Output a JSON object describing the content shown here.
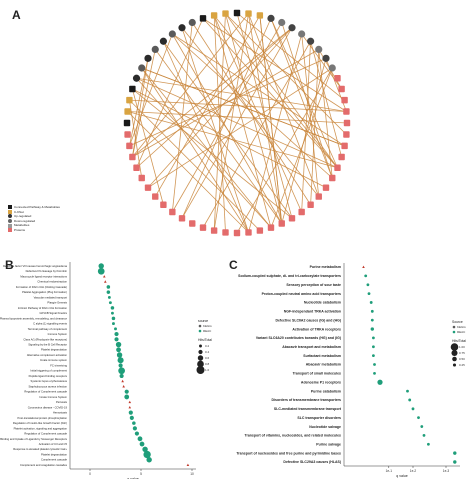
{
  "panel_a": {
    "label": "A",
    "legend": [
      {
        "text": "Connected Pathway & Metabolites",
        "color": "#1a1a1a",
        "shape": "square"
      },
      {
        "text": "C-KNet",
        "color": "#d9a441",
        "shape": "square"
      },
      {
        "text": "Up-regulated",
        "color": "#333333",
        "shape": "circle"
      },
      {
        "text": "Down-regulated",
        "color": "#666666",
        "shape": "circle"
      },
      {
        "text": "Metabolites",
        "color": "#999999",
        "shape": "square"
      },
      {
        "text": "Proteins",
        "color": "#e36b6b",
        "shape": "square"
      }
    ]
  },
  "panel_b": {
    "label": "B",
    "chart_data": {
      "type": "scatter",
      "xlabel": "q value",
      "xlim": [
        0,
        10
      ],
      "xticks": [
        0,
        5,
        10
      ],
      "legend_source_title": "source",
      "sources": [
        {
          "name": "KEGG",
          "color": "#5a5a5a"
        },
        {
          "name": "REAC",
          "color": "#1f9e7a"
        }
      ],
      "legend_size_title": "Hits/Total",
      "size_levels": [
        "0.2",
        "0.4",
        "0.6",
        "0.8",
        "1.0"
      ],
      "categories": [
        "Defective factor VIII causes hemorrhagic angioedema",
        "Defective F9 cleavage by thrombin",
        "Macrocycle ligand receptor interactions",
        "Chemical endoextraction",
        "Formation of Fibrin Clot (Clotting Cascade)",
        "Platelet Aggregation (Plug Formation)",
        "Vascular mediated transport",
        "Plasgin-Genesis",
        "Intrinsic Pathway of Fibrin Clot Formation",
        "GP1CB Signal Kinetics",
        "Plasma lipoprotein assembly, remodeling, and clearance",
        "C alpha (1) signalling events",
        "Terminal pathway of complement",
        "Immune System",
        "Class A/1 (Rhodopsin-like receptors)",
        "Signaling by the B Cell Receptor",
        "Platelet degranulation",
        "Alternative complement activation",
        "Innate immune system",
        "FC trimerizing",
        "Initial triggering of complement",
        "Peptide ligand binding receptors",
        "Systemic lupus erythematosus",
        "Staphylococcus aureus infection",
        "Regulation of Complement cascade",
        "Innate Immune System",
        "Pertussis",
        "Coronavirus disease - COVID-19",
        "Hemostasis",
        "Post-translational protein phosphorylation",
        "Regulation of Insulin-like Growth Factor (IGF)",
        "Platelet activation, signaling and aggregation",
        "Regulation of Complement cascade",
        "Binding and Uptake of Ligands by Scavenger Receptors",
        "Activation of C3 and C5",
        "Response to elevated platelet cytosolic Ca2+",
        "Platelet degranulation",
        "Complement cascade",
        "Complement and coagulation cascades"
      ],
      "points": [
        {
          "q": 1.1,
          "size": 0.6,
          "source": "REAC"
        },
        {
          "q": 1.1,
          "size": 0.8,
          "source": "REAC"
        },
        {
          "q": 1.4,
          "size": 0.2,
          "source": "KEGG"
        },
        {
          "q": 1.5,
          "size": 0.2,
          "source": "KEGG"
        },
        {
          "q": 1.8,
          "size": 0.3,
          "source": "REAC"
        },
        {
          "q": 1.8,
          "size": 0.3,
          "source": "REAC"
        },
        {
          "q": 1.9,
          "size": 0.2,
          "source": "REAC"
        },
        {
          "q": 2.0,
          "size": 0.2,
          "source": "REAC"
        },
        {
          "q": 2.2,
          "size": 0.3,
          "source": "REAC"
        },
        {
          "q": 2.2,
          "size": 0.2,
          "source": "REAC"
        },
        {
          "q": 2.3,
          "size": 0.3,
          "source": "REAC"
        },
        {
          "q": 2.3,
          "size": 0.2,
          "source": "REAC"
        },
        {
          "q": 2.5,
          "size": 0.2,
          "source": "REAC"
        },
        {
          "q": 2.6,
          "size": 0.4,
          "source": "REAC"
        },
        {
          "q": 2.6,
          "size": 0.4,
          "source": "REAC"
        },
        {
          "q": 2.8,
          "size": 0.6,
          "source": "REAC"
        },
        {
          "q": 2.8,
          "size": 0.5,
          "source": "REAC"
        },
        {
          "q": 2.9,
          "size": 0.6,
          "source": "REAC"
        },
        {
          "q": 3.0,
          "size": 0.7,
          "source": "REAC"
        },
        {
          "q": 3.0,
          "size": 0.4,
          "source": "REAC"
        },
        {
          "q": 3.1,
          "size": 0.8,
          "source": "REAC"
        },
        {
          "q": 3.1,
          "size": 0.4,
          "source": "REAC"
        },
        {
          "q": 3.2,
          "size": 0.3,
          "source": "KEGG"
        },
        {
          "q": 3.3,
          "size": 0.3,
          "source": "KEGG"
        },
        {
          "q": 3.6,
          "size": 0.4,
          "source": "REAC"
        },
        {
          "q": 3.6,
          "size": 0.5,
          "source": "REAC"
        },
        {
          "q": 3.9,
          "size": 0.3,
          "source": "KEGG"
        },
        {
          "q": 3.9,
          "size": 0.2,
          "source": "KEGG"
        },
        {
          "q": 4.0,
          "size": 0.4,
          "source": "REAC"
        },
        {
          "q": 4.1,
          "size": 0.4,
          "source": "REAC"
        },
        {
          "q": 4.3,
          "size": 0.3,
          "source": "REAC"
        },
        {
          "q": 4.4,
          "size": 0.4,
          "source": "REAC"
        },
        {
          "q": 4.6,
          "size": 0.4,
          "source": "REAC"
        },
        {
          "q": 4.9,
          "size": 0.5,
          "source": "REAC"
        },
        {
          "q": 5.1,
          "size": 0.5,
          "source": "REAC"
        },
        {
          "q": 5.4,
          "size": 0.6,
          "source": "REAC"
        },
        {
          "q": 5.6,
          "size": 0.9,
          "source": "REAC"
        },
        {
          "q": 5.8,
          "size": 0.6,
          "source": "REAC"
        },
        {
          "q": 9.6,
          "size": 0.3,
          "source": "KEGG"
        }
      ]
    }
  },
  "panel_c": {
    "label": "C",
    "chart_data": {
      "type": "scatter",
      "xlabel": "q value",
      "xticks": [
        "1e-1",
        "1e-2",
        "1e-3"
      ],
      "legend_source_title": "Source",
      "sources": [
        {
          "name": "KEGG",
          "color": "#5a5a5a"
        },
        {
          "name": "REAC",
          "color": "#1f9e7a"
        }
      ],
      "legend_size_title": "Hits/Total",
      "size_levels": [
        "1.00",
        "0.75",
        "0.50",
        "0.25"
      ],
      "categories": [
        "Purine metabolism",
        "Sodium-coupled sulphate, di- and tri-carboxylate transporters",
        "Sensory perception of sour taste",
        "Proton-coupled neutral amino acid transporters",
        "Nucleotide catabolism",
        "NGF-independant TRKA activation",
        "Defective SLC6A2 causes (IG) and (HG)",
        "Activation of TRKA receptors",
        "Variant SLC6A20 contributes towards (HG) and (IG)",
        "Abacavir transport and metabolism",
        "Surfactant metabolism",
        "Abacavir metabolism",
        "Transport of small molecules",
        "Adenosine P1 receptors",
        "Purine catabolism",
        "Disorders of transmembrane transporters",
        "SLC-mediated transmembrane transport",
        "SLC transporter disorders",
        "Nucleotide salvage",
        "Transport of vitamins, nucleosides, and related molecules",
        "Purine salvage",
        "Transport of nucleosides and free purine and pyrimidine bases",
        "Defective SLC29A3 causes (HLAS)"
      ],
      "points": [
        {
          "q": 0.15,
          "size": 0.2,
          "source": "KEGG"
        },
        {
          "q": 0.17,
          "size": 0.2,
          "source": "REAC"
        },
        {
          "q": 0.19,
          "size": 0.2,
          "source": "REAC"
        },
        {
          "q": 0.2,
          "size": 0.2,
          "source": "REAC"
        },
        {
          "q": 0.22,
          "size": 0.2,
          "source": "REAC"
        },
        {
          "q": 0.23,
          "size": 0.2,
          "source": "REAC"
        },
        {
          "q": 0.23,
          "size": 0.2,
          "source": "REAC"
        },
        {
          "q": 0.23,
          "size": 0.3,
          "source": "REAC"
        },
        {
          "q": 0.24,
          "size": 0.2,
          "source": "REAC"
        },
        {
          "q": 0.24,
          "size": 0.2,
          "source": "REAC"
        },
        {
          "q": 0.24,
          "size": 0.2,
          "source": "REAC"
        },
        {
          "q": 0.25,
          "size": 0.2,
          "source": "REAC"
        },
        {
          "q": 0.25,
          "size": 0.2,
          "source": "REAC"
        },
        {
          "q": 0.3,
          "size": 0.6,
          "source": "REAC"
        },
        {
          "q": 0.55,
          "size": 0.2,
          "source": "REAC"
        },
        {
          "q": 0.57,
          "size": 0.2,
          "source": "REAC"
        },
        {
          "q": 0.6,
          "size": 0.2,
          "source": "REAC"
        },
        {
          "q": 0.65,
          "size": 0.2,
          "source": "REAC"
        },
        {
          "q": 0.68,
          "size": 0.2,
          "source": "REAC"
        },
        {
          "q": 0.7,
          "size": 0.2,
          "source": "REAC"
        },
        {
          "q": 0.74,
          "size": 0.2,
          "source": "REAC"
        },
        {
          "q": 0.98,
          "size": 0.3,
          "source": "REAC"
        },
        {
          "q": 0.98,
          "size": 0.3,
          "source": "REAC"
        }
      ]
    }
  }
}
